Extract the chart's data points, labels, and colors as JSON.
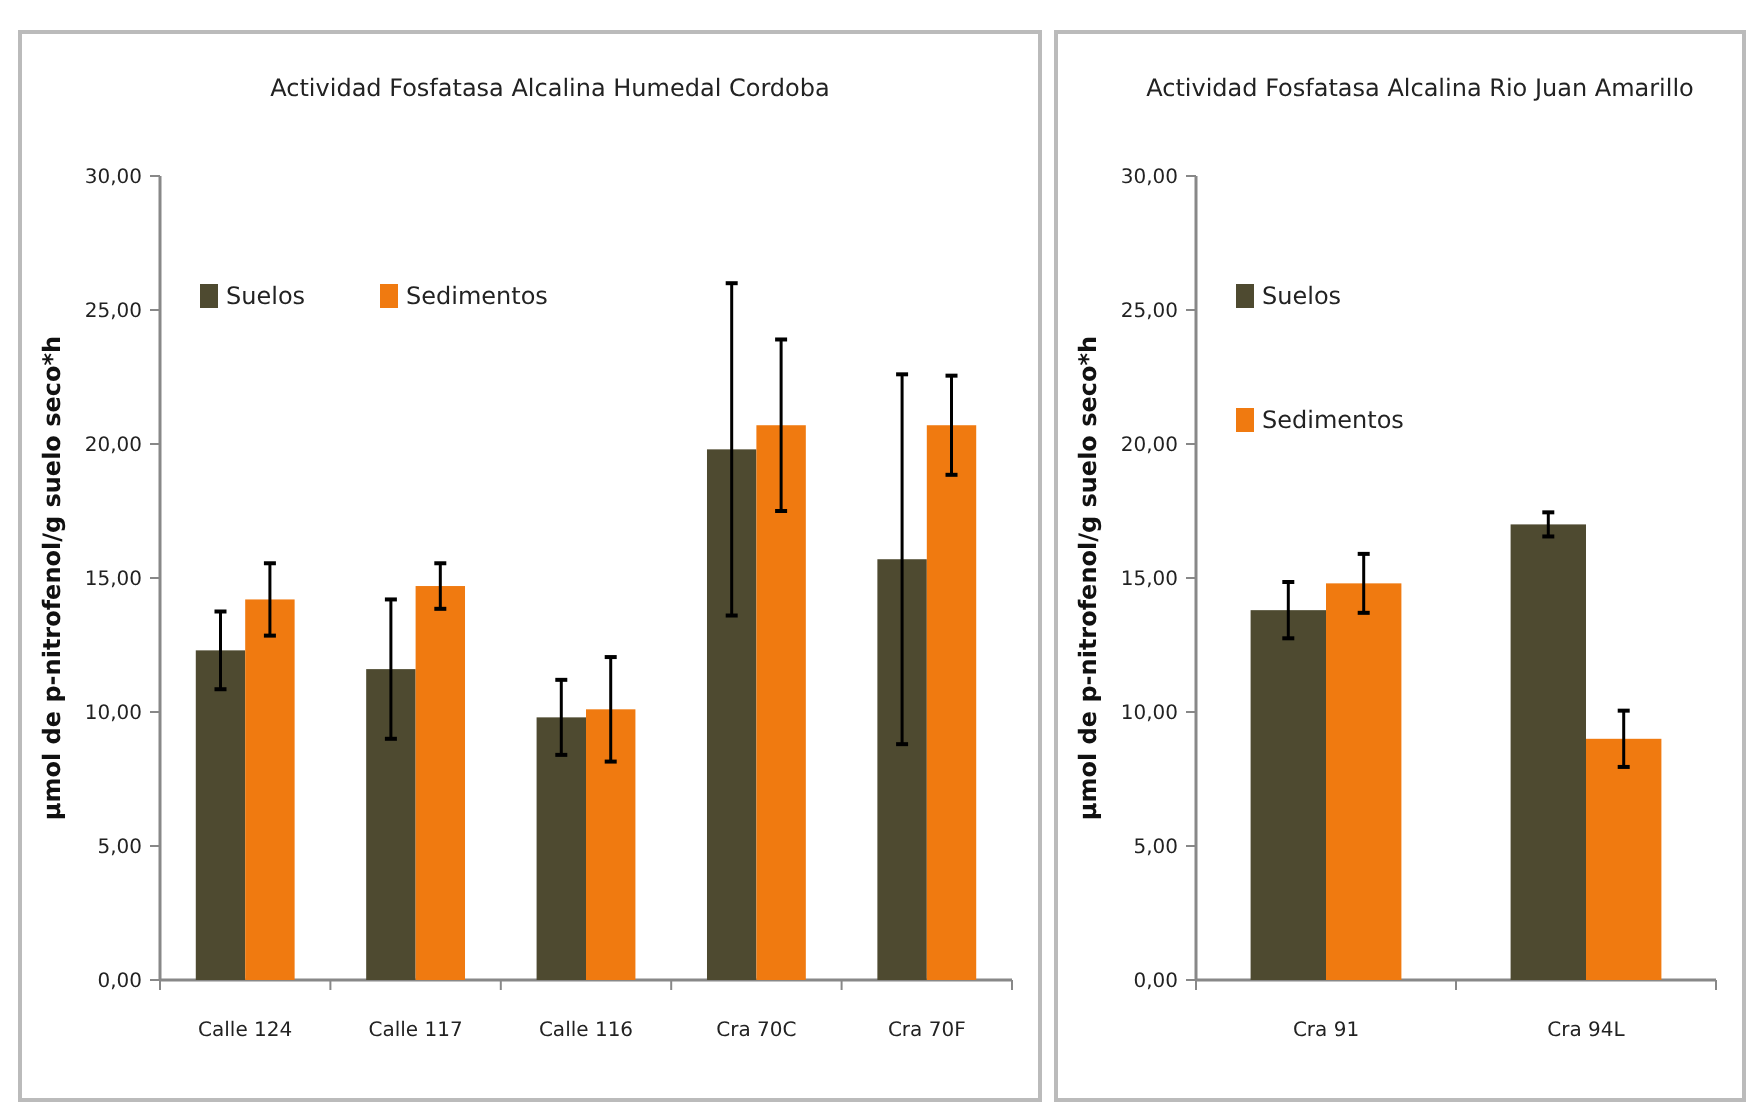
{
  "chart_data": [
    {
      "type": "bar",
      "title": "Actividad  Fosfatasa Alcalina Humedal Cordoba",
      "ylabel": "µmol de p-nitrofenol/g suelo seco*h",
      "categories": [
        "Calle 124",
        "Calle 117",
        "Calle 116",
        "Cra 70C",
        "Cra 70F"
      ],
      "ylim": [
        0,
        30
      ],
      "yticks": [
        {
          "value": 0,
          "label": "0,00"
        },
        {
          "value": 5,
          "label": "5,00"
        },
        {
          "value": 10,
          "label": "10,00"
        },
        {
          "value": 15,
          "label": "15,00"
        },
        {
          "value": 20,
          "label": "20,00"
        },
        {
          "value": 25,
          "label": "25,00"
        },
        {
          "value": 30,
          "label": "30,00"
        }
      ],
      "legend": "top left",
      "grid": false,
      "series": [
        {
          "name": "Suelos",
          "color": "#4e4a30",
          "values": [
            12.3,
            11.6,
            9.8,
            19.8,
            15.7
          ],
          "errors": [
            1.45,
            2.6,
            1.4,
            6.2,
            6.9
          ]
        },
        {
          "name": "Sedimentos",
          "color": "#f07a10",
          "values": [
            14.2,
            14.7,
            10.1,
            20.7,
            20.7
          ],
          "errors": [
            1.35,
            0.85,
            1.95,
            3.2,
            1.85
          ]
        }
      ]
    },
    {
      "type": "bar",
      "title": "Actividad Fosfatasa Alcalina Rio Juan Amarillo",
      "ylabel": "µmol de p-nitrofenol/g suelo seco*h",
      "categories": [
        "Cra 91",
        "Cra 94L"
      ],
      "ylim": [
        0,
        30
      ],
      "yticks": [
        {
          "value": 0,
          "label": "0,00"
        },
        {
          "value": 5,
          "label": "5,00"
        },
        {
          "value": 10,
          "label": "10,00"
        },
        {
          "value": 15,
          "label": "15,00"
        },
        {
          "value": 20,
          "label": "20,00"
        },
        {
          "value": 25,
          "label": "25,00"
        },
        {
          "value": 30,
          "label": "30,00"
        }
      ],
      "legend": "top left",
      "grid": false,
      "series": [
        {
          "name": "Suelos",
          "color": "#4e4a30",
          "values": [
            13.8,
            17.0
          ],
          "errors": [
            1.05,
            0.45
          ]
        },
        {
          "name": "Sedimentos",
          "color": "#f07a10",
          "values": [
            14.8,
            9.0
          ],
          "errors": [
            1.1,
            1.05
          ]
        }
      ]
    }
  ]
}
